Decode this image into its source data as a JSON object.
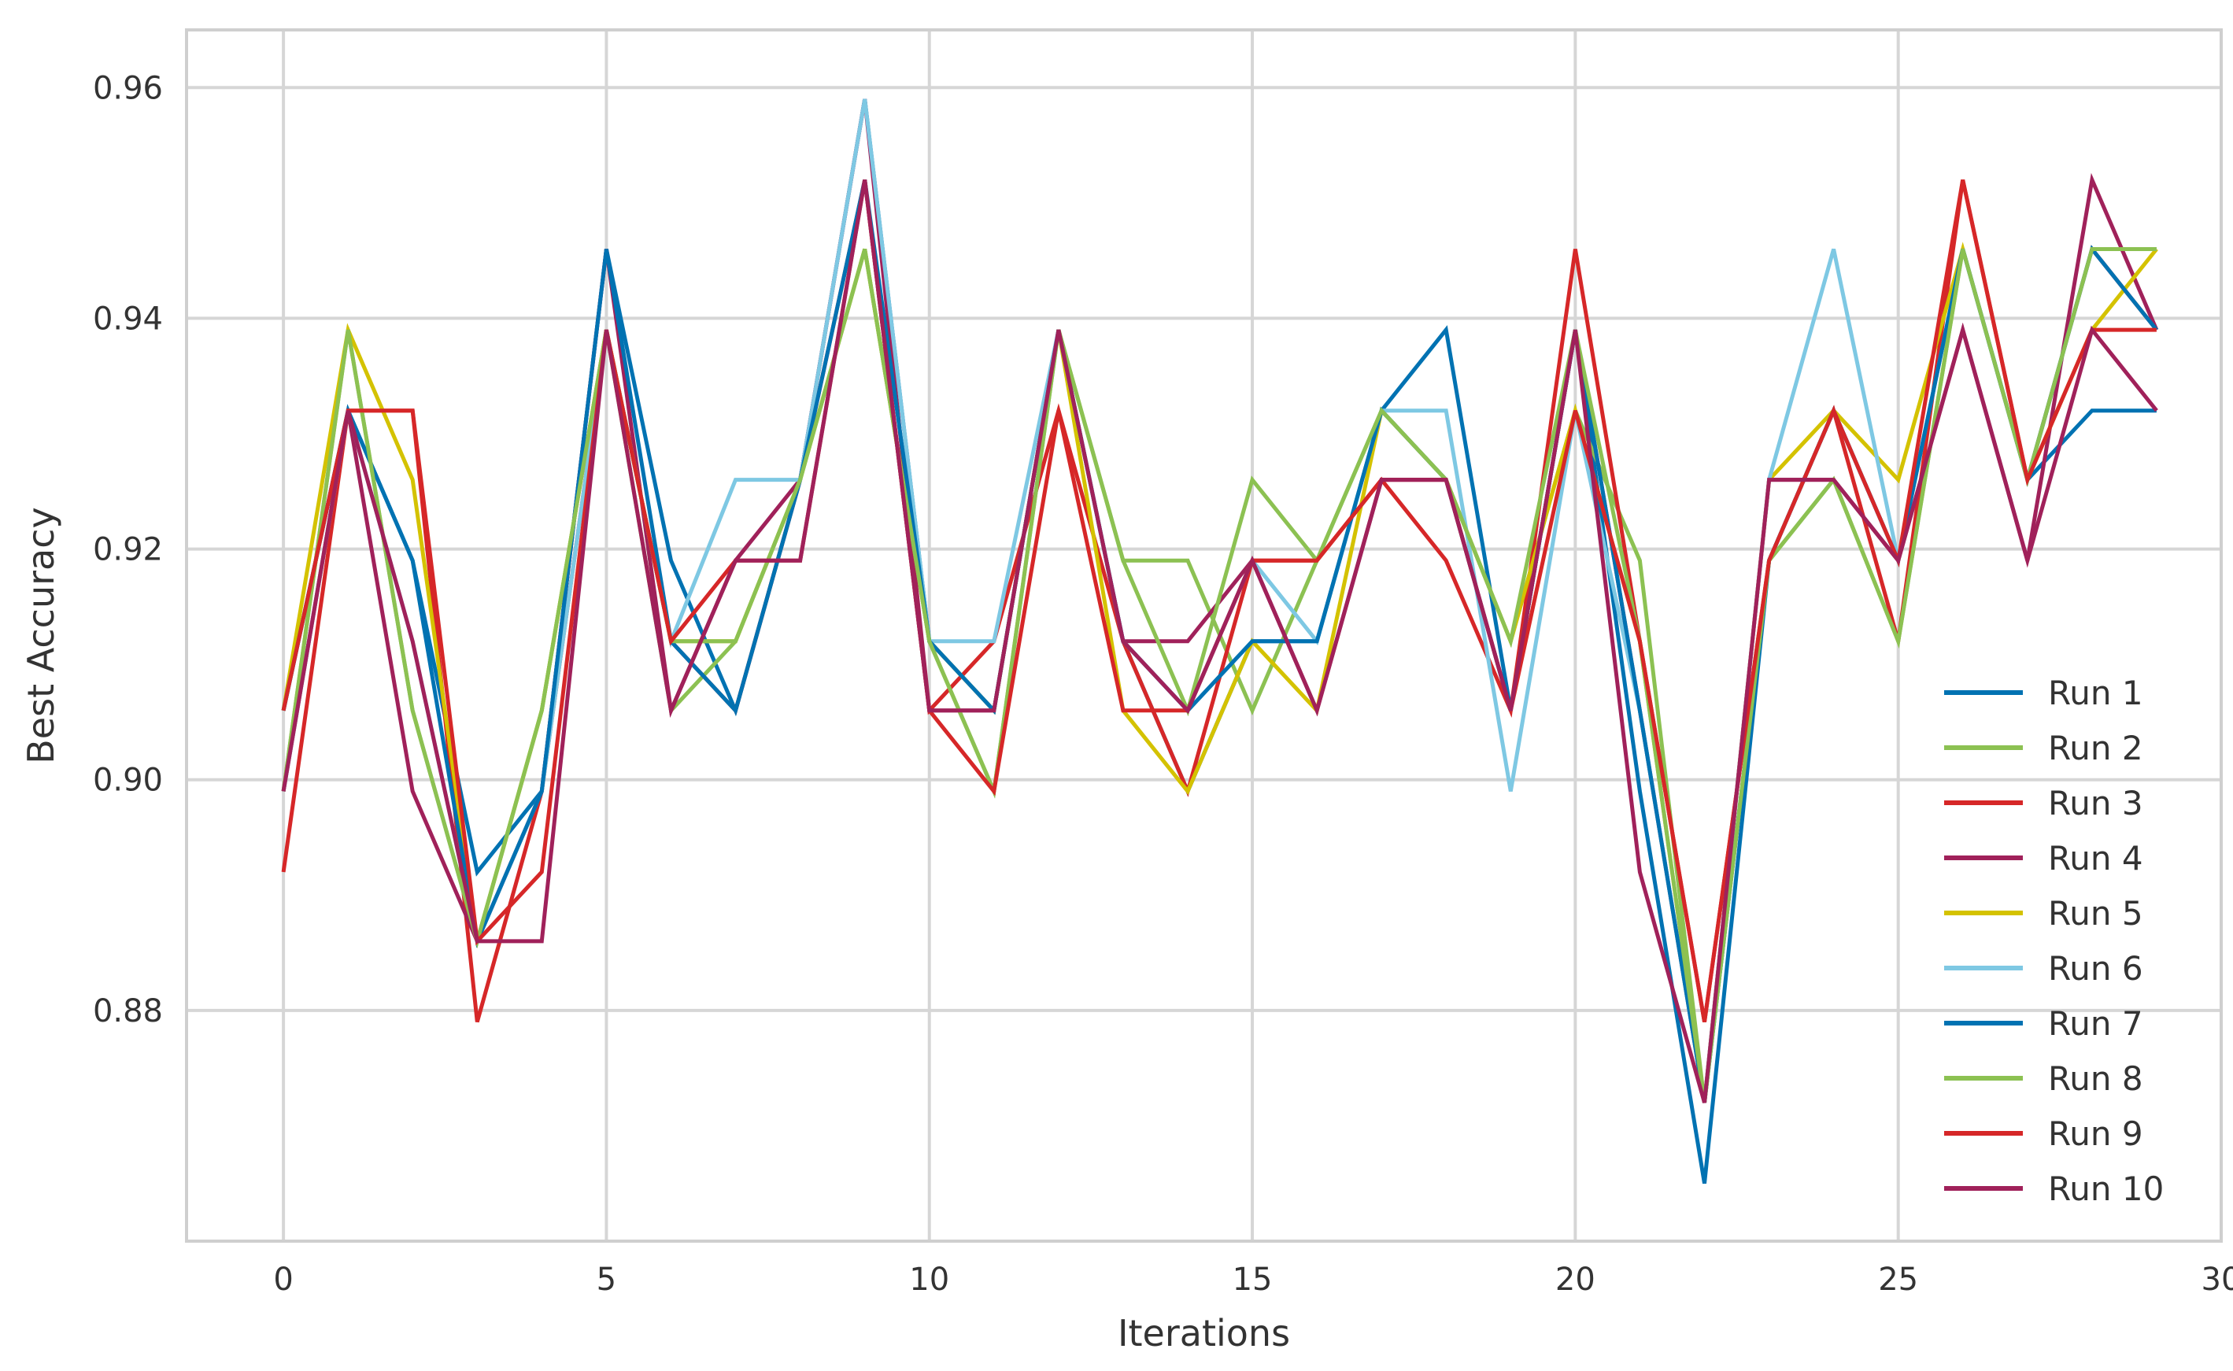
{
  "chart_data": {
    "type": "line",
    "title": "",
    "xlabel": "Iterations",
    "ylabel": "Best Accuracy",
    "xlim": [
      -1.5,
      30
    ],
    "ylim": [
      0.86,
      0.965
    ],
    "xticks": [
      0,
      5,
      10,
      15,
      20,
      25,
      30
    ],
    "yticks": [
      0.88,
      0.9,
      0.92,
      0.94,
      0.96
    ],
    "ytick_labels": [
      "0.88",
      "0.90",
      "0.92",
      "0.94",
      "0.96"
    ],
    "grid": true,
    "legend": "lower-right",
    "x": [
      0,
      1,
      2,
      3,
      4,
      5,
      6,
      7,
      8,
      9,
      10,
      11,
      12,
      13,
      14,
      15,
      16,
      17,
      18,
      19,
      20,
      21,
      22,
      23,
      24,
      25,
      26,
      27,
      28,
      29
    ],
    "series": [
      {
        "name": "Run 1",
        "color": "#0072B2",
        "values": [
          0.906,
          0.932,
          0.919,
          0.892,
          0.899,
          0.946,
          0.919,
          0.906,
          0.926,
          0.959,
          0.912,
          0.906,
          0.939,
          0.912,
          0.899,
          0.912,
          0.912,
          0.932,
          0.939,
          0.906,
          0.939,
          0.899,
          0.865,
          0.919,
          0.932,
          0.919,
          0.946,
          0.926,
          0.932,
          0.932
        ]
      },
      {
        "name": "Run 2",
        "color": "#8CC152",
        "values": [
          0.899,
          0.939,
          0.906,
          0.886,
          0.906,
          0.939,
          0.906,
          0.912,
          0.926,
          0.946,
          0.912,
          0.899,
          0.939,
          0.919,
          0.919,
          0.906,
          0.919,
          0.932,
          0.926,
          0.912,
          0.932,
          0.919,
          0.872,
          0.919,
          0.926,
          0.912,
          0.946,
          0.926,
          0.946,
          0.946
        ]
      },
      {
        "name": "Run 3",
        "color": "#D62728",
        "values": [
          0.892,
          0.932,
          0.932,
          0.879,
          0.899,
          0.939,
          0.912,
          0.906,
          0.926,
          0.952,
          0.906,
          0.912,
          0.932,
          0.912,
          0.899,
          0.919,
          0.919,
          0.926,
          0.919,
          0.906,
          0.946,
          0.912,
          0.879,
          0.919,
          0.932,
          0.912,
          0.952,
          0.926,
          0.946,
          0.939
        ]
      },
      {
        "name": "Run 4",
        "color": "#A0215A",
        "values": [
          0.899,
          0.932,
          0.899,
          0.886,
          0.899,
          0.946,
          0.906,
          0.919,
          0.926,
          0.959,
          0.906,
          0.906,
          0.939,
          0.912,
          0.912,
          0.919,
          0.906,
          0.926,
          0.926,
          0.906,
          0.939,
          0.906,
          0.872,
          0.926,
          0.926,
          0.919,
          0.939,
          0.919,
          0.952,
          0.939
        ]
      },
      {
        "name": "Run 5",
        "color": "#D4C200",
        "values": [
          0.906,
          0.939,
          0.926,
          0.886,
          0.906,
          0.939,
          0.912,
          0.912,
          0.926,
          0.946,
          0.912,
          0.906,
          0.939,
          0.906,
          0.899,
          0.912,
          0.906,
          0.932,
          0.926,
          0.912,
          0.932,
          0.912,
          0.872,
          0.926,
          0.932,
          0.926,
          0.946,
          0.926,
          0.939,
          0.946
        ]
      },
      {
        "name": "Run 6",
        "color": "#7EC8E3",
        "values": [
          0.899,
          0.932,
          0.912,
          0.886,
          0.899,
          0.939,
          0.912,
          0.926,
          0.926,
          0.959,
          0.912,
          0.912,
          0.939,
          0.912,
          0.906,
          0.919,
          0.912,
          0.932,
          0.932,
          0.899,
          0.932,
          0.906,
          0.872,
          0.926,
          0.946,
          0.919,
          0.946,
          0.926,
          0.946,
          0.946
        ]
      },
      {
        "name": "Run 7",
        "color": "#0072B2",
        "values": [
          0.906,
          0.932,
          0.919,
          0.886,
          0.899,
          0.946,
          0.912,
          0.906,
          0.926,
          0.952,
          0.912,
          0.906,
          0.939,
          0.912,
          0.906,
          0.912,
          0.912,
          0.932,
          0.926,
          0.906,
          0.939,
          0.906,
          0.872,
          0.919,
          0.932,
          0.919,
          0.946,
          0.926,
          0.946,
          0.939
        ]
      },
      {
        "name": "Run 8",
        "color": "#8CC152",
        "values": [
          0.899,
          0.939,
          0.906,
          0.886,
          0.906,
          0.939,
          0.912,
          0.912,
          0.926,
          0.946,
          0.912,
          0.899,
          0.939,
          0.919,
          0.906,
          0.926,
          0.919,
          0.932,
          0.926,
          0.912,
          0.939,
          0.912,
          0.872,
          0.919,
          0.926,
          0.912,
          0.946,
          0.926,
          0.946,
          0.946
        ]
      },
      {
        "name": "Run 9",
        "color": "#D62728",
        "values": [
          0.906,
          0.932,
          0.932,
          0.886,
          0.892,
          0.939,
          0.912,
          0.919,
          0.919,
          0.952,
          0.906,
          0.899,
          0.932,
          0.906,
          0.906,
          0.919,
          0.919,
          0.926,
          0.926,
          0.906,
          0.932,
          0.912,
          0.879,
          0.919,
          0.932,
          0.919,
          0.952,
          0.926,
          0.939,
          0.939
        ]
      },
      {
        "name": "Run 10",
        "color": "#A0215A",
        "values": [
          0.899,
          0.932,
          0.912,
          0.886,
          0.886,
          0.939,
          0.906,
          0.919,
          0.919,
          0.952,
          0.906,
          0.906,
          0.939,
          0.912,
          0.906,
          0.919,
          0.906,
          0.926,
          0.926,
          0.906,
          0.939,
          0.892,
          0.872,
          0.926,
          0.926,
          0.919,
          0.939,
          0.919,
          0.939,
          0.932
        ]
      }
    ]
  }
}
